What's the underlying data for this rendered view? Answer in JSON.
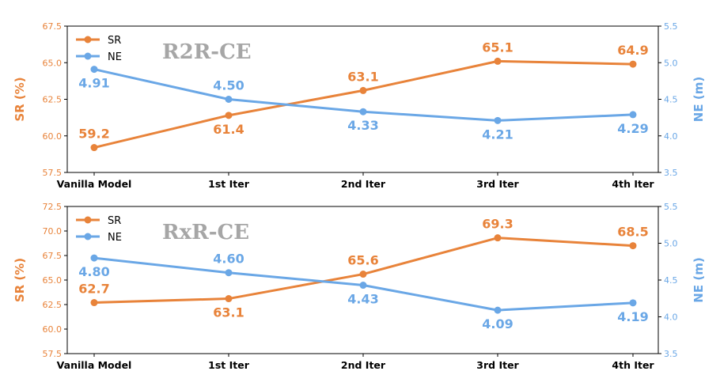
{
  "chart_data": [
    {
      "type": "line",
      "annotation": "R2R-CE",
      "categories": [
        "Vanilla Model",
        "1st Iter",
        "2nd Iter",
        "3rd Iter",
        "4th Iter"
      ],
      "ylabel": "SR (%)",
      "y2label": "NE (m)",
      "ylim": [
        57.5,
        67.5
      ],
      "yticks": [
        "57.5",
        "60.0",
        "62.5",
        "65.0",
        "67.5"
      ],
      "y2lim": [
        3.5,
        5.5
      ],
      "y2ticks": [
        "3.5",
        "4.0",
        "4.5",
        "5.0",
        "5.5"
      ],
      "legend_position": "upper-left",
      "series": [
        {
          "name": "SR",
          "axis": "left",
          "color": "#e8833a",
          "values": [
            59.2,
            61.4,
            63.1,
            65.1,
            64.9
          ],
          "labels": [
            "59.2",
            "61.4",
            "63.1",
            "65.1",
            "64.9"
          ],
          "label_side": [
            "above",
            "below",
            "above",
            "above",
            "above"
          ]
        },
        {
          "name": "NE",
          "axis": "right",
          "color": "#6aa7e6",
          "values": [
            4.91,
            4.5,
            4.33,
            4.21,
            4.29
          ],
          "labels": [
            "4.91",
            "4.50",
            "4.33",
            "4.21",
            "4.29"
          ],
          "label_side": [
            "below",
            "above",
            "below",
            "below",
            "below"
          ]
        }
      ]
    },
    {
      "type": "line",
      "annotation": "RxR-CE",
      "categories": [
        "Vanilla Model",
        "1st Iter",
        "2nd Iter",
        "3rd Iter",
        "4th Iter"
      ],
      "ylabel": "SR (%)",
      "y2label": "NE (m)",
      "ylim": [
        57.5,
        72.5
      ],
      "yticks": [
        "57.5",
        "60.0",
        "62.5",
        "65.0",
        "67.5",
        "70.0",
        "72.5"
      ],
      "y2lim": [
        3.5,
        5.5
      ],
      "y2ticks": [
        "3.5",
        "4.0",
        "4.5",
        "5.0",
        "5.5"
      ],
      "legend_position": "upper-left",
      "series": [
        {
          "name": "SR",
          "axis": "left",
          "color": "#e8833a",
          "values": [
            62.7,
            63.1,
            65.6,
            69.3,
            68.5
          ],
          "labels": [
            "62.7",
            "63.1",
            "65.6",
            "69.3",
            "68.5"
          ],
          "label_side": [
            "above",
            "below",
            "above",
            "above",
            "above"
          ]
        },
        {
          "name": "NE",
          "axis": "right",
          "color": "#6aa7e6",
          "values": [
            4.8,
            4.6,
            4.43,
            4.09,
            4.19
          ],
          "labels": [
            "4.80",
            "4.60",
            "4.43",
            "4.09",
            "4.19"
          ],
          "label_side": [
            "below",
            "above",
            "below",
            "below",
            "below"
          ]
        }
      ]
    }
  ]
}
